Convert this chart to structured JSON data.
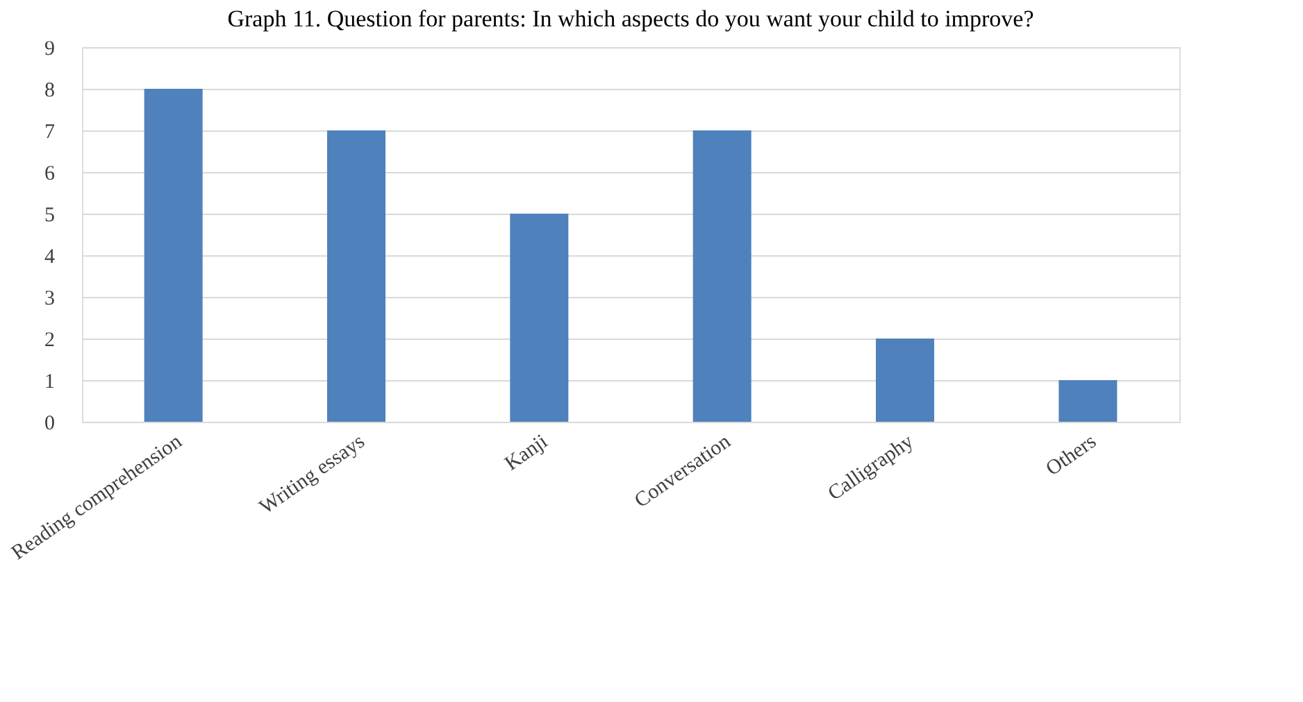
{
  "chart_data": {
    "type": "bar",
    "title": "Graph 11. Question for parents: In which aspects do you want your child to improve?",
    "categories": [
      "Reading comprehension",
      "Writing essays",
      "Kanji",
      "Conversation",
      "Calligraphy",
      "Others"
    ],
    "values": [
      8,
      7,
      5,
      7,
      2,
      1
    ],
    "color": "#4f81bd",
    "ylim": [
      0,
      9
    ],
    "yticks": [
      0,
      1,
      2,
      3,
      4,
      5,
      6,
      7,
      8,
      9
    ],
    "grid": "y"
  }
}
